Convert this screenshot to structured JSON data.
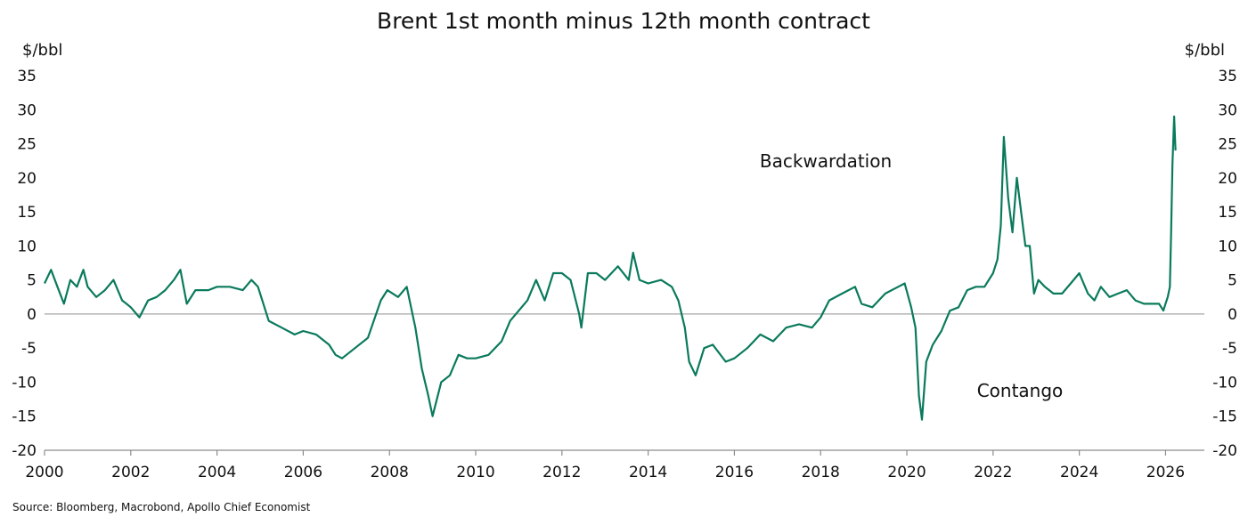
{
  "chart_data": {
    "type": "line",
    "title": "Brent 1st month minus 12th month contract",
    "ylabel_left": "$/bbl",
    "ylabel_right": "$/bbl",
    "xlabel": "",
    "ylim": [
      -20,
      35
    ],
    "yticks": [
      35,
      30,
      25,
      20,
      15,
      10,
      5,
      0,
      -5,
      -10,
      -15,
      -20
    ],
    "xlim": [
      2000,
      2026.9
    ],
    "xticks": [
      "2000",
      "2002",
      "2004",
      "2006",
      "2008",
      "2010",
      "2012",
      "2014",
      "2016",
      "2018",
      "2020",
      "2022",
      "2024",
      "2026"
    ],
    "grid": false,
    "zero_line": true,
    "annotations": [
      "Backwardation",
      "Contango"
    ],
    "source": "Source: Bloomberg, Macrobond, Apollo Chief Economist",
    "series": [
      {
        "name": "",
        "color": "#0a7a5c",
        "x": [
          2000.0,
          2000.15,
          2000.3,
          2000.45,
          2000.6,
          2000.75,
          2000.9,
          2001.0,
          2001.2,
          2001.4,
          2001.6,
          2001.8,
          2001.9,
          2002.0,
          2002.2,
          2002.4,
          2002.6,
          2002.8,
          2003.0,
          2003.15,
          2003.3,
          2003.5,
          2003.8,
          2004.0,
          2004.3,
          2004.6,
          2004.8,
          2004.95,
          2005.2,
          2005.5,
          2005.8,
          2006.0,
          2006.3,
          2006.6,
          2006.75,
          2006.9,
          2007.2,
          2007.5,
          2007.8,
          2007.95,
          2008.2,
          2008.4,
          2008.6,
          2008.75,
          2008.9,
          2009.0,
          2009.2,
          2009.4,
          2009.6,
          2009.8,
          2010.0,
          2010.3,
          2010.6,
          2010.8,
          2011.0,
          2011.2,
          2011.4,
          2011.6,
          2011.8,
          2012.0,
          2012.2,
          2012.4,
          2012.45,
          2012.6,
          2012.8,
          2013.0,
          2013.3,
          2013.55,
          2013.65,
          2013.8,
          2014.0,
          2014.3,
          2014.55,
          2014.7,
          2014.85,
          2014.95,
          2015.1,
          2015.3,
          2015.5,
          2015.8,
          2016.0,
          2016.3,
          2016.6,
          2016.9,
          2017.2,
          2017.5,
          2017.8,
          2018.0,
          2018.2,
          2018.5,
          2018.8,
          2018.95,
          2019.2,
          2019.5,
          2019.8,
          2019.95,
          2020.1,
          2020.2,
          2020.28,
          2020.35,
          2020.45,
          2020.6,
          2020.8,
          2021.0,
          2021.2,
          2021.4,
          2021.6,
          2021.8,
          2022.0,
          2022.1,
          2022.18,
          2022.25,
          2022.35,
          2022.45,
          2022.55,
          2022.65,
          2022.75,
          2022.85,
          2022.95,
          2023.05,
          2023.2,
          2023.4,
          2023.6,
          2023.8,
          2024.0,
          2024.2,
          2024.35,
          2024.5,
          2024.7,
          2024.9,
          2025.1,
          2025.3,
          2025.5,
          2025.7,
          2025.85,
          2025.95,
          2026.0,
          2026.05,
          2026.1,
          2026.13,
          2026.16,
          2026.2,
          2026.23
        ],
        "y": [
          4.5,
          6.5,
          4.0,
          1.5,
          5.0,
          4.0,
          6.5,
          4.0,
          2.5,
          3.5,
          5.0,
          2.0,
          1.5,
          1.0,
          -0.5,
          2.0,
          2.5,
          3.5,
          5.0,
          6.5,
          1.5,
          3.5,
          3.5,
          4.0,
          4.0,
          3.5,
          5.0,
          4.0,
          -1.0,
          -2.0,
          -3.0,
          -2.5,
          -3.0,
          -4.5,
          -6.0,
          -6.5,
          -5.0,
          -3.5,
          2.0,
          3.5,
          2.5,
          4.0,
          -2.0,
          -8.0,
          -12.0,
          -15.0,
          -10.0,
          -9.0,
          -6.0,
          -6.5,
          -6.5,
          -6.0,
          -4.0,
          -1.0,
          0.5,
          2.0,
          5.0,
          2.0,
          6.0,
          6.0,
          5.0,
          0.0,
          -2.0,
          6.0,
          6.0,
          5.0,
          7.0,
          5.0,
          9.0,
          5.0,
          4.5,
          5.0,
          4.0,
          2.0,
          -2.0,
          -7.0,
          -9.0,
          -5.0,
          -4.5,
          -7.0,
          -6.5,
          -5.0,
          -3.0,
          -4.0,
          -2.0,
          -1.5,
          -2.0,
          -0.5,
          2.0,
          3.0,
          4.0,
          1.5,
          1.0,
          3.0,
          4.0,
          4.5,
          1.0,
          -2.0,
          -12.0,
          -15.5,
          -7.0,
          -4.5,
          -2.5,
          0.5,
          1.0,
          3.5,
          4.0,
          4.0,
          6.0,
          8.0,
          13.0,
          26.0,
          17.0,
          12.0,
          20.0,
          15.0,
          10.0,
          10.0,
          3.0,
          5.0,
          4.0,
          3.0,
          3.0,
          4.5,
          6.0,
          3.0,
          2.0,
          4.0,
          2.5,
          3.0,
          3.5,
          2.0,
          1.5,
          1.5,
          1.5,
          0.5,
          1.5,
          2.5,
          4.0,
          12.0,
          22.0,
          29.0,
          24.0
        ]
      }
    ]
  }
}
